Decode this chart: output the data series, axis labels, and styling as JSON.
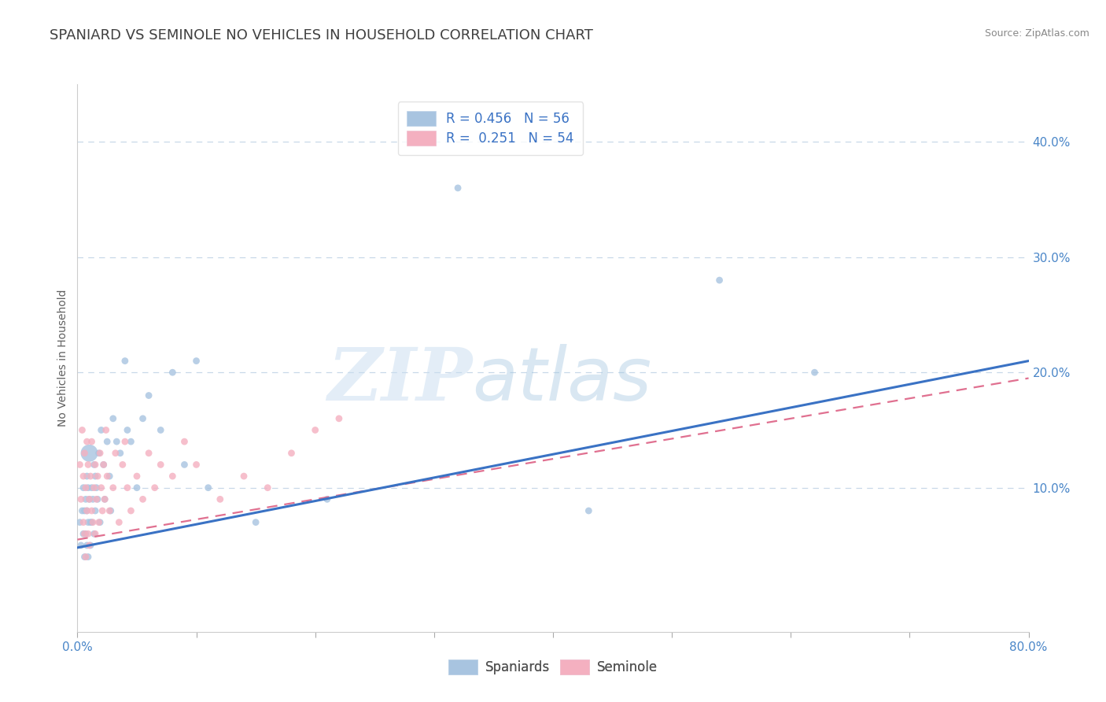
{
  "title": "SPANIARD VS SEMINOLE NO VEHICLES IN HOUSEHOLD CORRELATION CHART",
  "source_text": "Source: ZipAtlas.com",
  "ylabel": "No Vehicles in Household",
  "xlim": [
    0.0,
    0.8
  ],
  "ylim": [
    -0.025,
    0.45
  ],
  "yticks_right": [
    0.1,
    0.2,
    0.3,
    0.4
  ],
  "ytick_right_labels": [
    "10.0%",
    "20.0%",
    "30.0%",
    "40.0%"
  ],
  "spaniard_R": 0.456,
  "spaniard_N": 56,
  "seminole_R": 0.251,
  "seminole_N": 54,
  "spaniard_color": "#a8c4e0",
  "seminole_color": "#f4b0c0",
  "spaniard_line_color": "#3a72c4",
  "seminole_line_color": "#e07090",
  "legend_label_spaniard": "Spaniards",
  "legend_label_seminole": "Seminole",
  "watermark_zip": "ZIP",
  "watermark_atlas": "atlas",
  "background_color": "#ffffff",
  "grid_color": "#c8d8e8",
  "title_color": "#404040",
  "source_color": "#888888",
  "axis_label_color": "#606060",
  "tick_color": "#4a86c8",
  "spaniard_line_x0": 0.0,
  "spaniard_line_y0": 0.048,
  "spaniard_line_x1": 0.8,
  "spaniard_line_y1": 0.21,
  "seminole_line_x0": 0.0,
  "seminole_line_y0": 0.055,
  "seminole_line_x1": 0.8,
  "seminole_line_y1": 0.195,
  "spaniard_x": [
    0.002,
    0.003,
    0.004,
    0.005,
    0.005,
    0.006,
    0.006,
    0.007,
    0.007,
    0.008,
    0.008,
    0.008,
    0.009,
    0.009,
    0.009,
    0.01,
    0.01,
    0.011,
    0.011,
    0.012,
    0.012,
    0.013,
    0.014,
    0.014,
    0.015,
    0.015,
    0.016,
    0.017,
    0.018,
    0.019,
    0.02,
    0.022,
    0.023,
    0.025,
    0.027,
    0.028,
    0.03,
    0.033,
    0.036,
    0.04,
    0.042,
    0.045,
    0.05,
    0.055,
    0.06,
    0.07,
    0.08,
    0.09,
    0.1,
    0.11,
    0.15,
    0.21,
    0.32,
    0.43,
    0.54,
    0.62
  ],
  "spaniard_y": [
    0.07,
    0.05,
    0.08,
    0.06,
    0.1,
    0.08,
    0.04,
    0.09,
    0.06,
    0.11,
    0.08,
    0.05,
    0.1,
    0.07,
    0.04,
    0.13,
    0.09,
    0.07,
    0.05,
    0.1,
    0.07,
    0.09,
    0.12,
    0.06,
    0.11,
    0.08,
    0.1,
    0.09,
    0.13,
    0.07,
    0.15,
    0.12,
    0.09,
    0.14,
    0.11,
    0.08,
    0.16,
    0.14,
    0.13,
    0.21,
    0.15,
    0.14,
    0.1,
    0.16,
    0.18,
    0.15,
    0.2,
    0.12,
    0.21,
    0.1,
    0.07,
    0.09,
    0.36,
    0.08,
    0.28,
    0.2
  ],
  "spaniard_size": [
    40,
    40,
    40,
    40,
    40,
    40,
    40,
    40,
    40,
    40,
    40,
    40,
    40,
    40,
    40,
    250,
    40,
    40,
    40,
    40,
    40,
    40,
    40,
    40,
    40,
    40,
    40,
    40,
    40,
    40,
    40,
    40,
    40,
    40,
    40,
    40,
    40,
    40,
    40,
    40,
    40,
    40,
    40,
    40,
    40,
    40,
    40,
    40,
    40,
    40,
    40,
    40,
    40,
    40,
    40,
    40
  ],
  "seminole_x": [
    0.002,
    0.003,
    0.004,
    0.005,
    0.005,
    0.006,
    0.006,
    0.007,
    0.007,
    0.008,
    0.008,
    0.009,
    0.009,
    0.01,
    0.01,
    0.011,
    0.012,
    0.012,
    0.013,
    0.014,
    0.015,
    0.015,
    0.016,
    0.017,
    0.018,
    0.019,
    0.02,
    0.021,
    0.022,
    0.023,
    0.024,
    0.025,
    0.027,
    0.03,
    0.032,
    0.035,
    0.038,
    0.04,
    0.042,
    0.045,
    0.05,
    0.055,
    0.06,
    0.065,
    0.07,
    0.08,
    0.09,
    0.1,
    0.12,
    0.14,
    0.16,
    0.18,
    0.2,
    0.22
  ],
  "seminole_y": [
    0.12,
    0.09,
    0.15,
    0.07,
    0.11,
    0.06,
    0.13,
    0.1,
    0.04,
    0.08,
    0.14,
    0.12,
    0.06,
    0.09,
    0.05,
    0.11,
    0.08,
    0.14,
    0.07,
    0.1,
    0.12,
    0.06,
    0.09,
    0.11,
    0.07,
    0.13,
    0.1,
    0.08,
    0.12,
    0.09,
    0.15,
    0.11,
    0.08,
    0.1,
    0.13,
    0.07,
    0.12,
    0.14,
    0.1,
    0.08,
    0.11,
    0.09,
    0.13,
    0.1,
    0.12,
    0.11,
    0.14,
    0.12,
    0.09,
    0.11,
    0.1,
    0.13,
    0.15,
    0.16
  ],
  "seminole_size": [
    40,
    40,
    40,
    40,
    40,
    40,
    40,
    40,
    40,
    40,
    40,
    40,
    40,
    40,
    40,
    40,
    40,
    40,
    40,
    40,
    40,
    40,
    40,
    40,
    40,
    40,
    40,
    40,
    40,
    40,
    40,
    40,
    40,
    40,
    40,
    40,
    40,
    40,
    40,
    40,
    40,
    40,
    40,
    40,
    40,
    40,
    40,
    40,
    40,
    40,
    40,
    40,
    40,
    40
  ]
}
